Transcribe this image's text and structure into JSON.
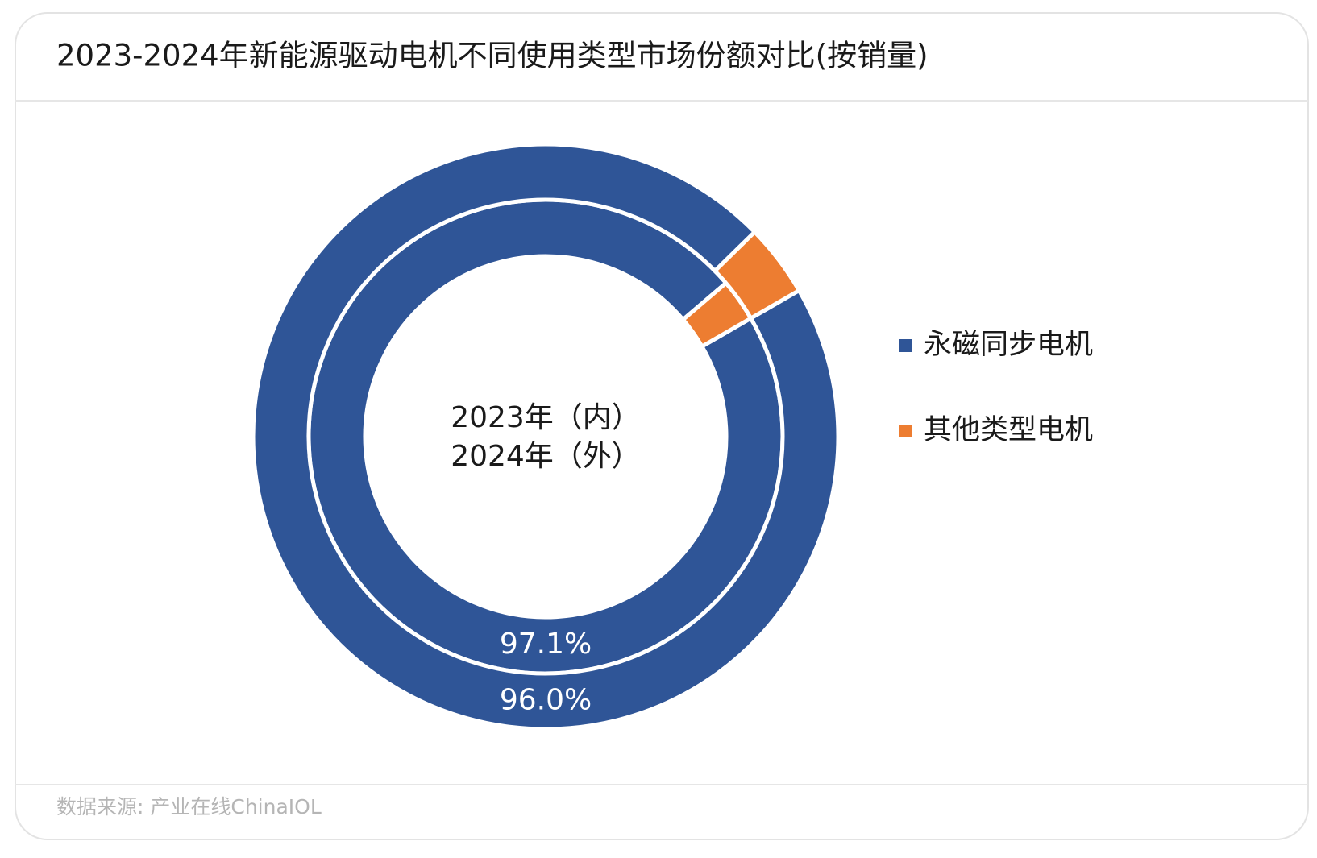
{
  "chart_data": {
    "type": "donut",
    "title": "2023-2024年新能源驱动电机不同使用类型市场份额对比(按销量)",
    "source": "数据来源: 产业在线ChinaIOL",
    "categories": [
      "永磁同步电机",
      "其他类型电机"
    ],
    "colors": [
      "#2f5597",
      "#ed7d31"
    ],
    "series": [
      {
        "name": "2023年（内）",
        "values": [
          97.1,
          2.9
        ],
        "value_labels": [
          "97.1%",
          null
        ]
      },
      {
        "name": "2024年（外）",
        "values": [
          96.0,
          4.0
        ],
        "value_labels": [
          "96.0%",
          null
        ]
      }
    ],
    "legend": "right"
  }
}
